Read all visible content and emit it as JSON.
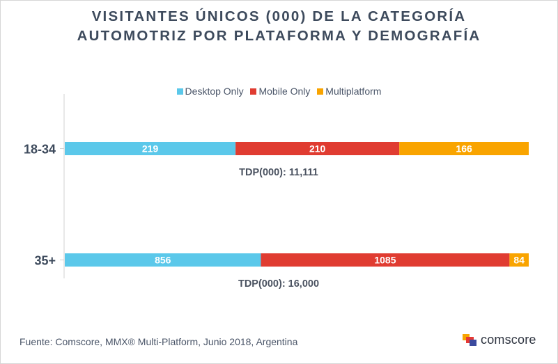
{
  "chart_data": {
    "type": "bar",
    "orientation": "horizontal",
    "stacked": true,
    "title_lines": [
      "VISITANTES ÚNICOS (000) DE LA CATEGORÍA",
      "AUTOMOTRIZ POR PLATAFORMA Y DEMOGRAFÍA"
    ],
    "categories": [
      "18-34",
      "35+"
    ],
    "series": [
      {
        "name": "Desktop Only",
        "color": "#5bc8ea",
        "values": [
          219,
          856
        ]
      },
      {
        "name": "Mobile Only",
        "color": "#e03c31",
        "values": [
          210,
          1085
        ]
      },
      {
        "name": "Multiplatform",
        "color": "#f9a400",
        "values": [
          166,
          84
        ]
      }
    ],
    "bar_annotations": [
      "TDP(000): 11,111",
      "TDP(000): 16,000"
    ],
    "legend_position": "top",
    "grid": false
  },
  "source_text": "Fuente: Comscore, MMX® Multi-Platform, Junio 2018, Argentina",
  "brand": {
    "name": "comscore"
  }
}
